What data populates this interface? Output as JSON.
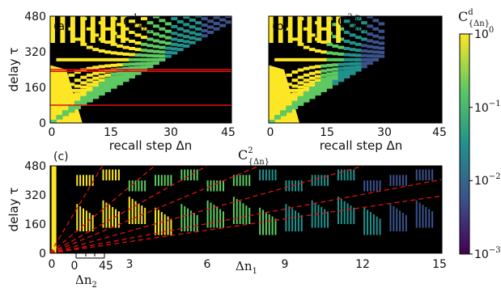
{
  "chart_data": [
    {
      "type": "heatmap",
      "panel_label": "(a)",
      "title": "C",
      "title_sup": "1",
      "title_sub": "{Δn}",
      "xlabel": "recall step Δn",
      "ylabel": "delay τ",
      "xlim": [
        0,
        45
      ],
      "ylim": [
        0,
        480
      ],
      "xticks": [
        "0",
        "15",
        "30",
        "45"
      ],
      "yticks": [
        "0",
        "160",
        "320",
        "480"
      ],
      "grid": false,
      "overlay_lines": [
        {
          "style": "solid",
          "color": "#dd1111",
          "y": 240
        },
        {
          "style": "solid",
          "color": "#dd1111",
          "y": 232
        },
        {
          "style": "solid",
          "color": "#dd1111",
          "y": 80
        }
      ]
    },
    {
      "type": "heatmap",
      "panel_label": "(b)",
      "title": "C",
      "title_sup": "2,p",
      "title_sub": "{Δn}",
      "xlabel": "recall step Δn",
      "xlim": [
        0,
        45
      ],
      "ylim": [
        0,
        480
      ],
      "xticks": [
        "0",
        "15",
        "30",
        "45"
      ],
      "grid": false
    },
    {
      "type": "heatmap",
      "panel_label": "(c)",
      "title": "C",
      "title_sup": "2",
      "title_sub": "{Δn}",
      "xlabel": "Δn",
      "xlabel_sub": "1",
      "ylabel": "delay τ",
      "xlim": [
        0,
        15
      ],
      "ylim": [
        0,
        480
      ],
      "xticks": [
        "0",
        "3",
        "6",
        "9",
        "12",
        "15"
      ],
      "yticks": [
        "0",
        "160",
        "320",
        "480"
      ],
      "inset_xlabel": "Δn",
      "inset_xlabel_sub": "2",
      "inset_xticks": [
        "0",
        "45"
      ],
      "grid": false,
      "overlay_lines": [
        {
          "style": "dashed",
          "color": "#dd1111",
          "slope_per_dn1": 240
        },
        {
          "style": "dashed",
          "color": "#dd1111",
          "slope_per_dn1": 120
        },
        {
          "style": "dashed",
          "color": "#dd1111",
          "slope_per_dn1": 80
        },
        {
          "style": "dashed",
          "color": "#dd1111",
          "slope_per_dn1": 60
        },
        {
          "style": "dashed",
          "color": "#dd1111",
          "slope_per_dn1": 40
        },
        {
          "style": "dashed",
          "color": "#dd1111",
          "slope_per_dn1": 27
        },
        {
          "style": "dashed",
          "color": "#dd1111",
          "slope_per_dn1": 21
        }
      ]
    }
  ],
  "colorbar": {
    "title": "C",
    "title_sup": "d",
    "title_sub": "{Δn}",
    "scale": "log",
    "range": [
      0.001,
      1
    ],
    "ticks": [
      {
        "base": "10",
        "exp": "0"
      },
      {
        "base": "10",
        "exp": "−1"
      },
      {
        "base": "10",
        "exp": "−2"
      },
      {
        "base": "10",
        "exp": "−3"
      }
    ],
    "colormap": [
      "#440154",
      "#3b528b",
      "#21918c",
      "#5ec962",
      "#fde725"
    ]
  }
}
